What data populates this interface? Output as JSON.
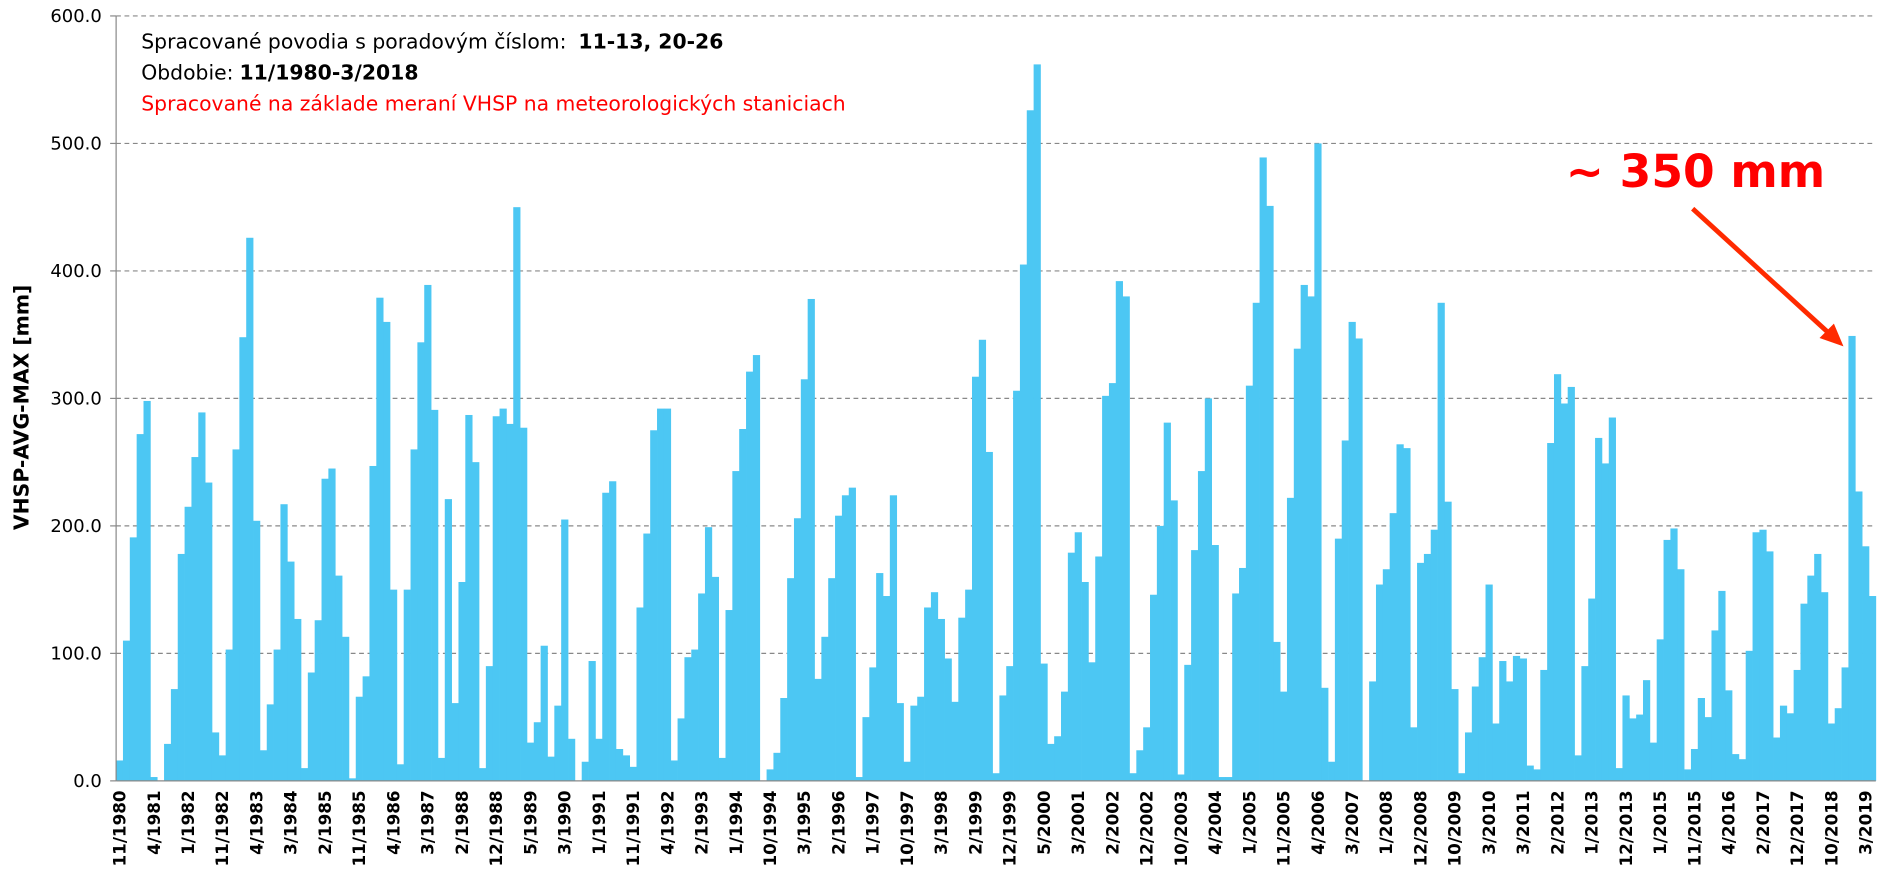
{
  "chart_data": {
    "type": "bar",
    "y_label": "VHSP-AVG-MAX [mm]",
    "info": {
      "line1": "Spracované povodia s poradovým číslom:",
      "line1_bold": "11-13, 20-26",
      "line2": "Obdobie:",
      "line2_bold": "11/1980-3/2018",
      "line3": "Spracované na základe meraní VHSP na meteorologických staniciach"
    },
    "annotation": "~ 350 mm",
    "color": "#4cc7f3",
    "grid": true,
    "ylim": [
      0,
      600
    ],
    "yticks": [
      {
        "value": 0,
        "label": "0.0"
      },
      {
        "value": 100,
        "label": "100.0"
      },
      {
        "value": 200,
        "label": "200.0"
      },
      {
        "value": 300,
        "label": "300.0"
      },
      {
        "value": 400,
        "label": "400.0"
      },
      {
        "value": 500,
        "label": "500.0"
      },
      {
        "value": 600,
        "label": "600.0"
      }
    ],
    "categories": [
      "11/1980",
      null,
      null,
      null,
      null,
      "4/1981",
      null,
      null,
      null,
      null,
      "1/1982",
      null,
      null,
      null,
      null,
      "11/1982",
      null,
      null,
      null,
      null,
      "4/1983",
      null,
      null,
      null,
      null,
      "3/1984",
      null,
      null,
      null,
      null,
      "2/1985",
      null,
      null,
      null,
      null,
      "11/1985",
      null,
      null,
      null,
      null,
      "4/1986",
      null,
      null,
      null,
      null,
      "3/1987",
      null,
      null,
      null,
      null,
      "2/1988",
      null,
      null,
      null,
      null,
      "12/1988",
      null,
      null,
      null,
      null,
      "5/1989",
      null,
      null,
      null,
      null,
      "3/1990",
      null,
      null,
      null,
      null,
      "1/1991",
      null,
      null,
      null,
      null,
      "11/1991",
      null,
      null,
      null,
      null,
      "4/1992",
      null,
      null,
      null,
      null,
      "2/1993",
      null,
      null,
      null,
      null,
      "1/1994",
      null,
      null,
      null,
      null,
      "10/1994",
      null,
      null,
      null,
      null,
      "3/1995",
      null,
      null,
      null,
      null,
      "2/1996",
      null,
      null,
      null,
      null,
      "1/1997",
      null,
      null,
      null,
      null,
      "10/1997",
      null,
      null,
      null,
      null,
      "3/1998",
      null,
      null,
      null,
      null,
      "2/1999",
      null,
      null,
      null,
      null,
      "12/1999",
      null,
      null,
      null,
      null,
      "5/2000",
      null,
      null,
      null,
      null,
      "3/2001",
      null,
      null,
      null,
      null,
      "2/2002",
      null,
      null,
      null,
      null,
      "12/2002",
      null,
      null,
      null,
      null,
      "10/2003",
      null,
      null,
      null,
      null,
      "4/2004",
      null,
      null,
      null,
      null,
      "1/2005",
      null,
      null,
      null,
      null,
      "11/2005",
      null,
      null,
      null,
      null,
      "4/2006",
      null,
      null,
      null,
      null,
      "3/2007",
      null,
      null,
      null,
      null,
      "1/2008",
      null,
      null,
      null,
      null,
      "12/2008",
      null,
      null,
      null,
      null,
      "10/2009",
      null,
      null,
      null,
      null,
      "3/2010",
      null,
      null,
      null,
      null,
      "3/2011",
      null,
      null,
      null,
      null,
      "2/2012",
      null,
      null,
      null,
      null,
      "1/2013",
      null,
      null,
      null,
      null,
      "12/2013",
      null,
      null,
      null,
      null,
      "1/2015",
      null,
      null,
      null,
      null,
      "11/2015",
      null,
      null,
      null,
      null,
      "4/2016",
      null,
      null,
      null,
      null,
      "2/2017",
      null,
      null,
      null,
      null,
      "12/2017",
      null,
      null,
      null,
      null,
      "10/2018",
      null,
      null,
      null,
      null,
      "3/2019",
      null
    ],
    "values": [
      16,
      110,
      191,
      272,
      298,
      3,
      0,
      29,
      72,
      178,
      215,
      254,
      289,
      234,
      38,
      20,
      103,
      260,
      348,
      426,
      204,
      24,
      60,
      103,
      217,
      172,
      127,
      10,
      85,
      126,
      237,
      245,
      161,
      113,
      2,
      66,
      82,
      247,
      379,
      360,
      150,
      13,
      150,
      260,
      344,
      389,
      291,
      18,
      221,
      61,
      156,
      287,
      250,
      10,
      90,
      286,
      292,
      280,
      450,
      277,
      30,
      46,
      106,
      19,
      59,
      205,
      33,
      0,
      15,
      94,
      33,
      226,
      235,
      25,
      20,
      11,
      136,
      194,
      275,
      292,
      292,
      16,
      49,
      97,
      103,
      147,
      199,
      160,
      18,
      134,
      243,
      276,
      321,
      334,
      0,
      9,
      22,
      65,
      159,
      206,
      315,
      378,
      80,
      113,
      159,
      208,
      224,
      230,
      3,
      50,
      89,
      163,
      145,
      224,
      61,
      15,
      59,
      66,
      136,
      148,
      127,
      96,
      62,
      128,
      150,
      317,
      346,
      258,
      6,
      67,
      90,
      306,
      405,
      526,
      562,
      92,
      29,
      35,
      70,
      179,
      195,
      156,
      93,
      176,
      302,
      312,
      392,
      380,
      6,
      24,
      42,
      146,
      200,
      281,
      220,
      5,
      91,
      181,
      243,
      300,
      185,
      3,
      3,
      147,
      167,
      310,
      375,
      489,
      451,
      109,
      70,
      222,
      339,
      389,
      380,
      500,
      73,
      15,
      190,
      267,
      360,
      347,
      0,
      78,
      154,
      166,
      210,
      264,
      261,
      42,
      171,
      178,
      197,
      375,
      219,
      72,
      6,
      38,
      74,
      97,
      154,
      45,
      94,
      78,
      98,
      96,
      12,
      9,
      87,
      265,
      319,
      296,
      309,
      20,
      90,
      143,
      269,
      249,
      285,
      10,
      67,
      49,
      52,
      79,
      30,
      111,
      189,
      198,
      166,
      9,
      25,
      65,
      50,
      118,
      149,
      71,
      21,
      17,
      102,
      195,
      197,
      180,
      34,
      59,
      53,
      87,
      139,
      161,
      178,
      148,
      45,
      57,
      89,
      349,
      227,
      184,
      145
    ]
  }
}
